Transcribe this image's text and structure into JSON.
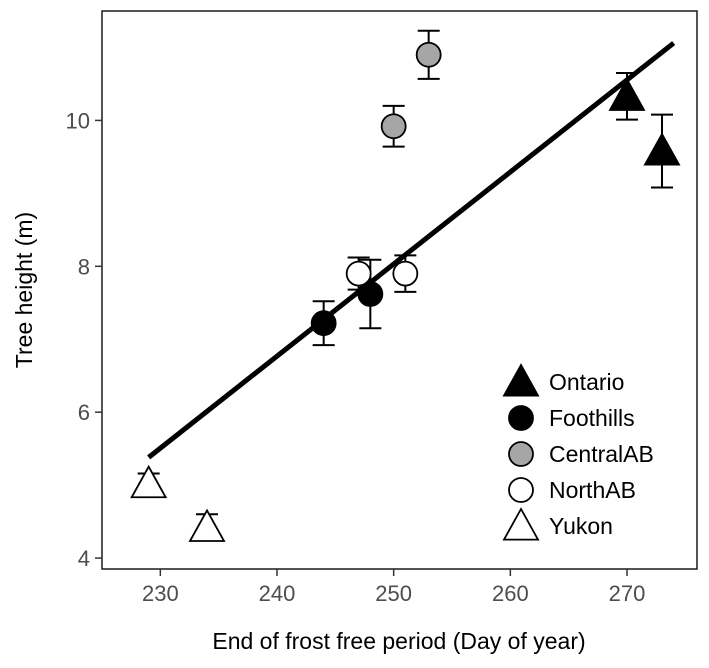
{
  "chart_data": {
    "type": "scatter",
    "title": "",
    "xlabel": "End of frost free period (Day of year)",
    "ylabel": "Tree height (m)",
    "xlim": [
      225,
      276
    ],
    "ylim": [
      3.85,
      11.5
    ],
    "xticks": [
      230,
      240,
      250,
      260,
      270
    ],
    "yticks": [
      4,
      6,
      8,
      10
    ],
    "grid": false,
    "legend_position": "bottom-right",
    "series": [
      {
        "name": "Ontario",
        "marker": "triangle",
        "fill": "#000000",
        "points": [
          {
            "x": 270,
            "y": 10.33,
            "err": 0.32
          },
          {
            "x": 273,
            "y": 9.58,
            "err": 0.5
          }
        ]
      },
      {
        "name": "Foothills",
        "marker": "circle",
        "fill": "#000000",
        "points": [
          {
            "x": 244,
            "y": 7.22,
            "err": 0.3
          },
          {
            "x": 248,
            "y": 7.62,
            "err": 0.47
          }
        ]
      },
      {
        "name": "CentralAB",
        "marker": "circle",
        "fill": "#a6a6a6",
        "points": [
          {
            "x": 250,
            "y": 9.92,
            "err": 0.28
          },
          {
            "x": 253,
            "y": 10.9,
            "err": 0.33
          }
        ]
      },
      {
        "name": "NorthAB",
        "marker": "circle",
        "fill": "#ffffff",
        "points": [
          {
            "x": 247,
            "y": 7.9,
            "err": 0.22
          },
          {
            "x": 251,
            "y": 7.9,
            "err": 0.25
          }
        ]
      },
      {
        "name": "Yukon",
        "marker": "triangle",
        "fill": "#ffffff",
        "points": [
          {
            "x": 229,
            "y": 5.02,
            "err": 0.14
          },
          {
            "x": 234,
            "y": 4.42,
            "err": 0.18
          }
        ]
      }
    ],
    "regression_line": {
      "x": [
        229,
        274
      ],
      "y": [
        5.38,
        11.06
      ]
    }
  }
}
